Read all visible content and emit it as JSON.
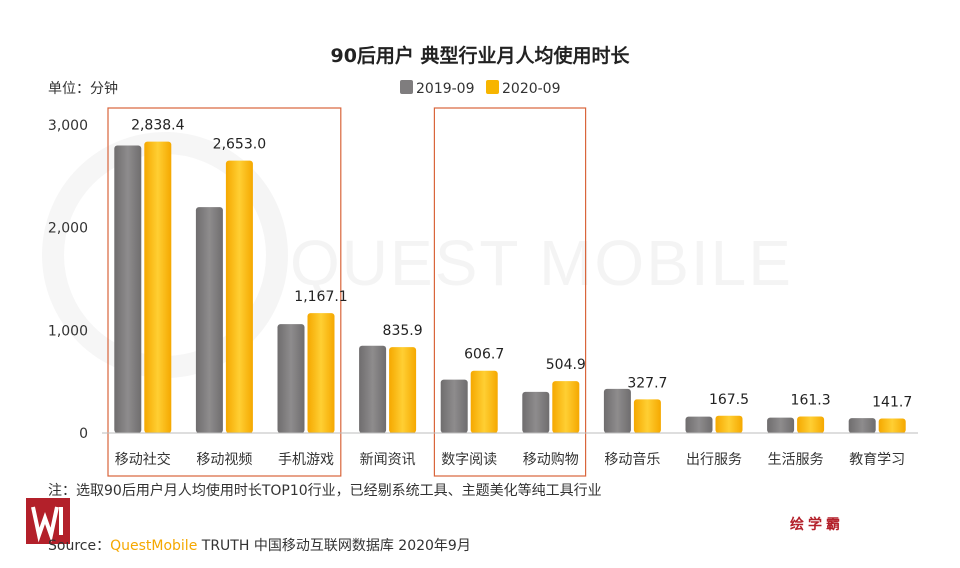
{
  "chart_data": {
    "type": "bar",
    "title": "90后用户 典型行业月人均使用时长",
    "unit_label": "单位：分钟",
    "categories": [
      "移动社交",
      "移动视频",
      "手机游戏",
      "新闻资讯",
      "数字阅读",
      "移动购物",
      "移动音乐",
      "出行服务",
      "生活服务",
      "教育学习"
    ],
    "series": [
      {
        "name": "2019-09",
        "color": "#7f7d7e",
        "values": [
          2800,
          2200,
          1060,
          850,
          520,
          400,
          430,
          160,
          150,
          145
        ]
      },
      {
        "name": "2020-09",
        "color": "#f7b500",
        "values": [
          2838.4,
          2653.0,
          1167.1,
          835.9,
          606.7,
          504.9,
          327.7,
          167.5,
          161.3,
          141.7
        ]
      }
    ],
    "data_labels": [
      "2,838.4",
      "2,653.0",
      "1,167.1",
      "835.9",
      "606.7",
      "504.9",
      "327.7",
      "167.5",
      "161.3",
      "141.7"
    ],
    "y_ticks": [
      0,
      1000,
      2000,
      3000
    ],
    "y_tick_labels": [
      "0",
      "1,000",
      "2,000",
      "3,000"
    ],
    "ylim": [
      0,
      3000
    ],
    "xlabel": "",
    "ylabel": "",
    "legend_position": "top-center",
    "highlight_groups": [
      [
        0,
        2
      ],
      [
        4,
        5
      ]
    ],
    "highlight_color": "#d9653b",
    "watermark": "QUEST MOBILE"
  },
  "footer": {
    "note": "注：选取90后用户月人均使用时长TOP10行业，已经剔系统工具、主题美化等纯工具行业",
    "source_prefix": "Source：",
    "source_brand_q": "Quest",
    "source_brand_m": "Mobile",
    "source_rest": " TRUTH 中国移动互联网数据库 2020年9月",
    "logo_right": "绘学霸"
  }
}
